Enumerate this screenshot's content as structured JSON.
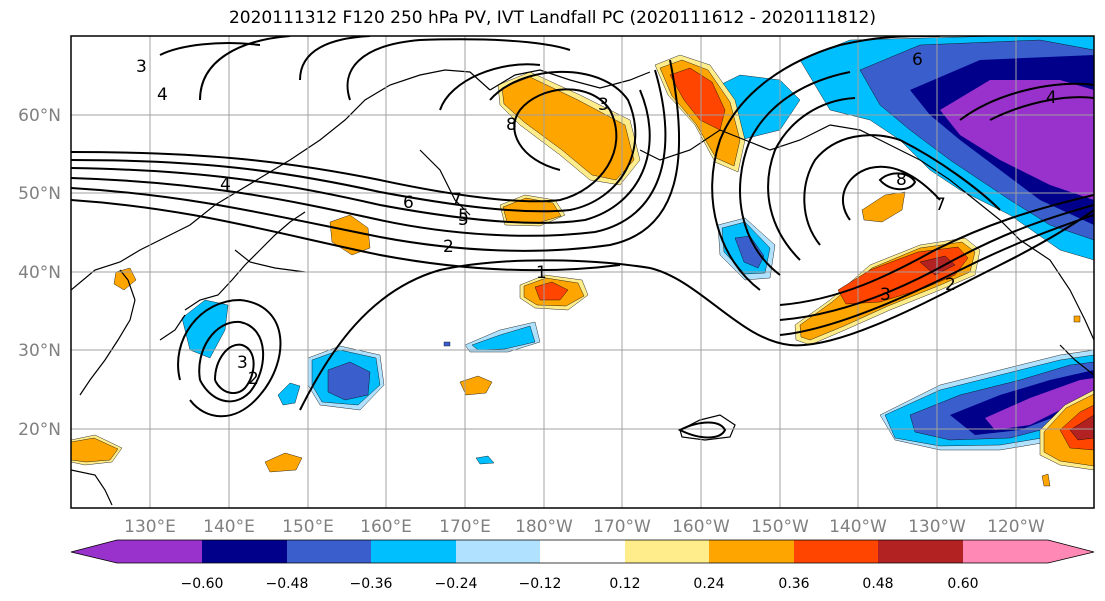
{
  "title": "2020111312 F120 250 hPa PV, IVT Landfall PC (2020111612 - 2020111812)",
  "colors": {
    "levels": [
      "#9932cc",
      "#00008b",
      "#3a5fcd",
      "#00bfff",
      "#b0e2ff",
      "#ffffff",
      "#ffec8b",
      "#ffa500",
      "#ff4500",
      "#b22222",
      "#ff88b4"
    ],
    "grid": "#a0a0a0",
    "coast": "#000000"
  },
  "map": {
    "lat_labels": [
      "60°N",
      "50°N",
      "40°N",
      "30°N",
      "20°N"
    ],
    "lon_labels": [
      "130°E",
      "140°E",
      "150°E",
      "160°E",
      "170°E",
      "180°W",
      "170°W",
      "160°W",
      "150°W",
      "140°W",
      "130°W",
      "120°W"
    ]
  },
  "contour_labels": [
    "3",
    "4",
    "8",
    "3",
    "4",
    "5",
    "6",
    "7",
    "5",
    "2",
    "1",
    "3",
    "2",
    "8",
    "7",
    "3",
    "2",
    "4",
    "6"
  ],
  "colorbar": {
    "tick_labels": [
      "−0.60",
      "−0.48",
      "−0.36",
      "−0.24",
      "−0.12",
      "0.12",
      "0.24",
      "0.36",
      "0.48",
      "0.60"
    ]
  }
}
